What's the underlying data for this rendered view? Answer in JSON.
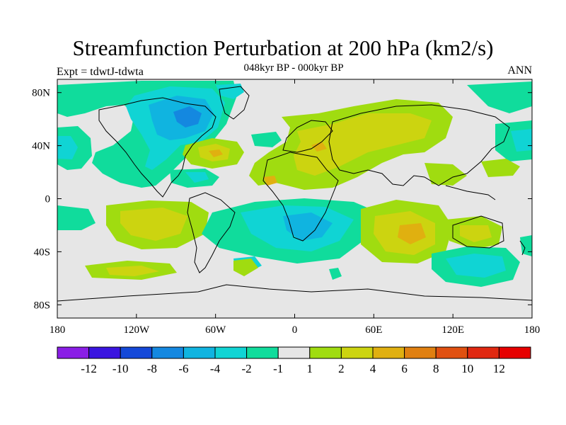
{
  "title": "Streamfunction Perturbation at 200 hPa (km2/s)",
  "subtitle": "048kyr BP - 000kyr BP",
  "experiment": "Expt = tdwtJ-tdwta",
  "season": "ANN",
  "chart_data": {
    "type": "heatmap",
    "title": "Streamfunction Perturbation at 200 hPa (km2/s)",
    "subtitle": "048kyr BP - 000kyr BP",
    "xlabel": "",
    "ylabel": "",
    "x_range": [
      -180,
      180
    ],
    "y_range": [
      -90,
      90
    ],
    "x_ticks": [
      {
        "value": -180,
        "label": "180"
      },
      {
        "value": -120,
        "label": "120W"
      },
      {
        "value": -60,
        "label": "60W"
      },
      {
        "value": 0,
        "label": "0"
      },
      {
        "value": 60,
        "label": "60E"
      },
      {
        "value": 120,
        "label": "120E"
      },
      {
        "value": 180,
        "label": "180"
      }
    ],
    "y_ticks": [
      {
        "value": 80,
        "label": "80N"
      },
      {
        "value": 40,
        "label": "40N"
      },
      {
        "value": 0,
        "label": "0"
      },
      {
        "value": -40,
        "label": "40S"
      },
      {
        "value": -80,
        "label": "80S"
      }
    ],
    "colorbar": {
      "labels": [
        "-12",
        "-10",
        "-8",
        "-6",
        "-4",
        "-2",
        "-1",
        "1",
        "2",
        "4",
        "6",
        "8",
        "10",
        "12"
      ],
      "colors": [
        "#8a1ee6",
        "#3a14e0",
        "#1448d8",
        "#1488e0",
        "#10b4e0",
        "#10d4d4",
        "#10dc9c",
        "#e6e6e6",
        "#a0dc10",
        "#ccd410",
        "#e0b010",
        "#e08010",
        "#e05010",
        "#e02810",
        "#e60000"
      ]
    },
    "anomalies": [
      {
        "name": "north-america-low",
        "lon": -105,
        "lat": 58,
        "level": -6
      },
      {
        "name": "north-america-low-core",
        "lon": -100,
        "lat": 60,
        "level": -4
      },
      {
        "name": "alaska-low",
        "lon": -165,
        "lat": 45,
        "level": -2
      },
      {
        "name": "north-atlantic-high",
        "lon": -60,
        "lat": 35,
        "level": 4
      },
      {
        "name": "eurasia-high",
        "lon": 60,
        "lat": 52,
        "level": 4
      },
      {
        "name": "africa-high",
        "lon": 20,
        "lat": 30,
        "level": 2
      },
      {
        "name": "south-atlantic-low",
        "lon": 15,
        "lat": -25,
        "level": -4
      },
      {
        "name": "indian-ocean-high",
        "lon": 90,
        "lat": -25,
        "level": 6
      },
      {
        "name": "south-pacific-high",
        "lon": -120,
        "lat": -20,
        "level": 4
      },
      {
        "name": "southern-ocean-low",
        "lon": 125,
        "lat": -52,
        "level": -4
      }
    ]
  }
}
